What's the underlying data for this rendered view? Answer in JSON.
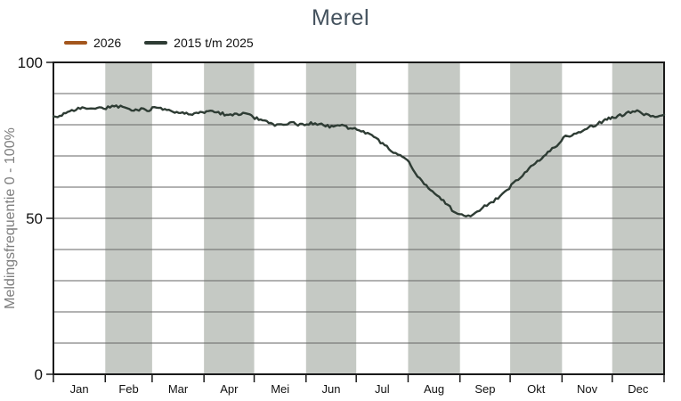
{
  "title": "Merel",
  "legend": [
    {
      "label": "2026",
      "color": "#a3561d"
    },
    {
      "label": "2015 t/m 2025",
      "color": "#2e3c34"
    }
  ],
  "y_axis": {
    "label": "Meldingsfrequentie 0 - 100%",
    "ticks": [
      0,
      50,
      100
    ],
    "min": 0,
    "max": 100,
    "gridline_step": 10
  },
  "x_axis": {
    "months": [
      "Jan",
      "Feb",
      "Mar",
      "Apr",
      "Mei",
      "Jun",
      "Jul",
      "Aug",
      "Sep",
      "Okt",
      "Nov",
      "Dec"
    ],
    "month_days": [
      31,
      28,
      31,
      30,
      31,
      30,
      31,
      31,
      30,
      31,
      30,
      31
    ],
    "shaded_months": [
      "Feb",
      "Apr",
      "Jun",
      "Aug",
      "Okt",
      "Dec"
    ]
  },
  "colors": {
    "band": "#c5c9c4",
    "grid": "#666666",
    "axis": "#1a1a1a",
    "title": "#44525e",
    "y_label_text": "#7e7e7e",
    "tick_text": "#111111"
  },
  "chart_data": {
    "type": "line",
    "title": "Merel",
    "ylabel": "Meldingsfrequentie 0 - 100%",
    "ylim": [
      0,
      100
    ],
    "x_unit": "day_of_year",
    "x_range": [
      1,
      365
    ],
    "grid": true,
    "legend_position": "top-left",
    "series": [
      {
        "name": "2026",
        "color": "#a3561d",
        "points": []
      },
      {
        "name": "2015 t/m 2025",
        "color": "#2e3c34",
        "points": [
          [
            1,
            82.3
          ],
          [
            6,
            83.0
          ],
          [
            12,
            84.6
          ],
          [
            17,
            85.3
          ],
          [
            22,
            85.2
          ],
          [
            26,
            85.5
          ],
          [
            31,
            85.3
          ],
          [
            36,
            85.7
          ],
          [
            41,
            85.9
          ],
          [
            45,
            85.4
          ],
          [
            49,
            84.5
          ],
          [
            52,
            84.9
          ],
          [
            56,
            85.2
          ],
          [
            58,
            84.2
          ],
          [
            60,
            85.7
          ],
          [
            65,
            85.0
          ],
          [
            71,
            84.4
          ],
          [
            78,
            83.9
          ],
          [
            85,
            83.5
          ],
          [
            91,
            83.9
          ],
          [
            97,
            84.2
          ],
          [
            103,
            83.4
          ],
          [
            109,
            83.2
          ],
          [
            114,
            83.7
          ],
          [
            118,
            83.0
          ],
          [
            121,
            82.2
          ],
          [
            127,
            81.2
          ],
          [
            133,
            79.9
          ],
          [
            138,
            80.1
          ],
          [
            143,
            80.5
          ],
          [
            148,
            80.0
          ],
          [
            152,
            80.4
          ],
          [
            157,
            80.5
          ],
          [
            162,
            79.8
          ],
          [
            168,
            79.3
          ],
          [
            173,
            79.7
          ],
          [
            178,
            78.9
          ],
          [
            182,
            78.4
          ],
          [
            187,
            77.6
          ],
          [
            192,
            76.2
          ],
          [
            196,
            74.3
          ],
          [
            201,
            72.4
          ],
          [
            205,
            70.9
          ],
          [
            209,
            70.0
          ],
          [
            212,
            68.6
          ],
          [
            214,
            67.1
          ],
          [
            218,
            63.4
          ],
          [
            222,
            61.0
          ],
          [
            227,
            59.0
          ],
          [
            231,
            56.8
          ],
          [
            236,
            54.3
          ],
          [
            240,
            51.8
          ],
          [
            243,
            51.0
          ],
          [
            247,
            50.8
          ],
          [
            251,
            51.2
          ],
          [
            255,
            52.4
          ],
          [
            258,
            53.8
          ],
          [
            262,
            55.0
          ],
          [
            266,
            56.7
          ],
          [
            270,
            58.5
          ],
          [
            274,
            60.5
          ],
          [
            278,
            62.5
          ],
          [
            282,
            64.5
          ],
          [
            287,
            67.0
          ],
          [
            292,
            69.3
          ],
          [
            297,
            71.5
          ],
          [
            301,
            73.5
          ],
          [
            305,
            76.0
          ],
          [
            310,
            76.5
          ],
          [
            314,
            77.5
          ],
          [
            319,
            78.8
          ],
          [
            324,
            80.0
          ],
          [
            329,
            81.2
          ],
          [
            332,
            82.0
          ],
          [
            335,
            82.4
          ],
          [
            340,
            83.2
          ],
          [
            345,
            84.0
          ],
          [
            349,
            84.3
          ],
          [
            353,
            83.4
          ],
          [
            357,
            82.7
          ],
          [
            361,
            83.0
          ],
          [
            365,
            83.2
          ]
        ]
      }
    ]
  }
}
